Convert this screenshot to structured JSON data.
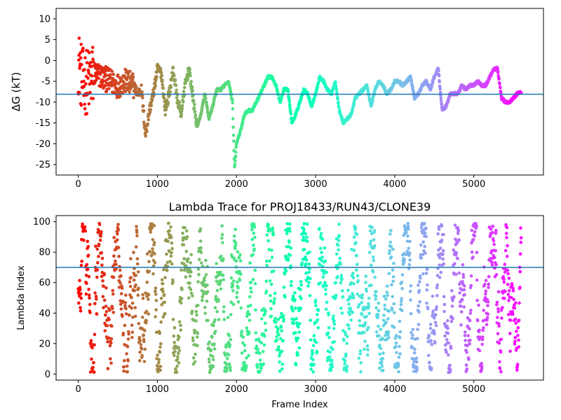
{
  "chart_data": [
    {
      "type": "scatter",
      "title": "",
      "xlabel": "",
      "ylabel": "ΔG (kT)",
      "xlim": [
        -280,
        5880
      ],
      "ylim": [
        -27.5,
        12.5
      ],
      "xticks": [
        0,
        1000,
        2000,
        3000,
        4000,
        5000
      ],
      "yticks": [
        10,
        5,
        0,
        -5,
        -10,
        -15,
        -20,
        -25
      ],
      "hline": -8.1,
      "hline_color": "#1f77b4",
      "colormap": "rainbow (reversed along frame index: red at 0, violet at 5600)",
      "grid": false,
      "legend": "none",
      "frame_count": 5600,
      "trend_x": [
        0,
        50,
        100,
        150,
        200,
        300,
        400,
        500,
        600,
        700,
        750,
        800,
        850,
        900,
        950,
        1000,
        1050,
        1100,
        1150,
        1200,
        1250,
        1300,
        1350,
        1400,
        1450,
        1500,
        1550,
        1600,
        1650,
        1700,
        1750,
        1800,
        1850,
        1900,
        1950,
        1975,
        2000,
        2050,
        2100,
        2150,
        2200,
        2250,
        2300,
        2350,
        2400,
        2450,
        2500,
        2550,
        2600,
        2650,
        2700,
        2750,
        2800,
        2850,
        2900,
        2950,
        3000,
        3050,
        3100,
        3150,
        3200,
        3250,
        3300,
        3350,
        3400,
        3450,
        3500,
        3550,
        3600,
        3650,
        3700,
        3750,
        3800,
        3850,
        3900,
        3950,
        4000,
        4050,
        4100,
        4150,
        4200,
        4250,
        4300,
        4350,
        4400,
        4450,
        4500,
        4550,
        4600,
        4650,
        4700,
        4750,
        4800,
        4850,
        4900,
        4950,
        5000,
        5050,
        5100,
        5150,
        5200,
        5250,
        5300,
        5350,
        5400,
        5450,
        5500,
        5550,
        5600
      ],
      "trend_y": [
        0,
        -5,
        -5,
        -5,
        -3,
        -4,
        -5,
        -6,
        -5,
        -6,
        -8,
        -7,
        -18,
        -12,
        -8,
        -2,
        -3,
        -12,
        -8,
        -2,
        -9,
        -13,
        -6,
        -2,
        -9,
        -16,
        -13,
        -8,
        -14,
        -11,
        -7,
        -7,
        -6,
        -5,
        -10,
        -26,
        -20,
        -17,
        -13,
        -12,
        -12,
        -10,
        -8,
        -6,
        -4,
        -4,
        -6,
        -10,
        -7,
        -7,
        -15,
        -13,
        -10,
        -7,
        -8,
        -11,
        -8,
        -4,
        -5,
        -7,
        -8,
        -5,
        -12,
        -15,
        -14,
        -13,
        -9,
        -8,
        -7,
        -6,
        -11,
        -7,
        -5,
        -6,
        -8,
        -7,
        -5,
        -5,
        -6,
        -5,
        -4,
        -9,
        -8,
        -6,
        -5,
        -7,
        -4,
        -2,
        -12,
        -11,
        -8,
        -8,
        -8,
        -6,
        -7,
        -6,
        -6,
        -5,
        -6,
        -6,
        -4,
        -2,
        -2,
        -9,
        -10,
        -10,
        -9,
        -8,
        -7.5
      ]
    },
    {
      "type": "scatter",
      "title": "Lambda Trace for PROJ18433/RUN43/CLONE39",
      "xlabel": "Frame Index",
      "ylabel": "Lambda Index",
      "xlim": [
        -280,
        5880
      ],
      "ylim": [
        -4,
        104
      ],
      "xticks": [
        0,
        1000,
        2000,
        3000,
        4000,
        5000
      ],
      "yticks": [
        100,
        80,
        60,
        40,
        20,
        0
      ],
      "hline": 70,
      "hline_color": "#1f77b4",
      "colormap": "rainbow (reversed along frame index: red at 0, violet at 5600)",
      "grid": false,
      "legend": "none",
      "frame_count": 5600,
      "value_range": [
        1,
        99
      ]
    }
  ]
}
